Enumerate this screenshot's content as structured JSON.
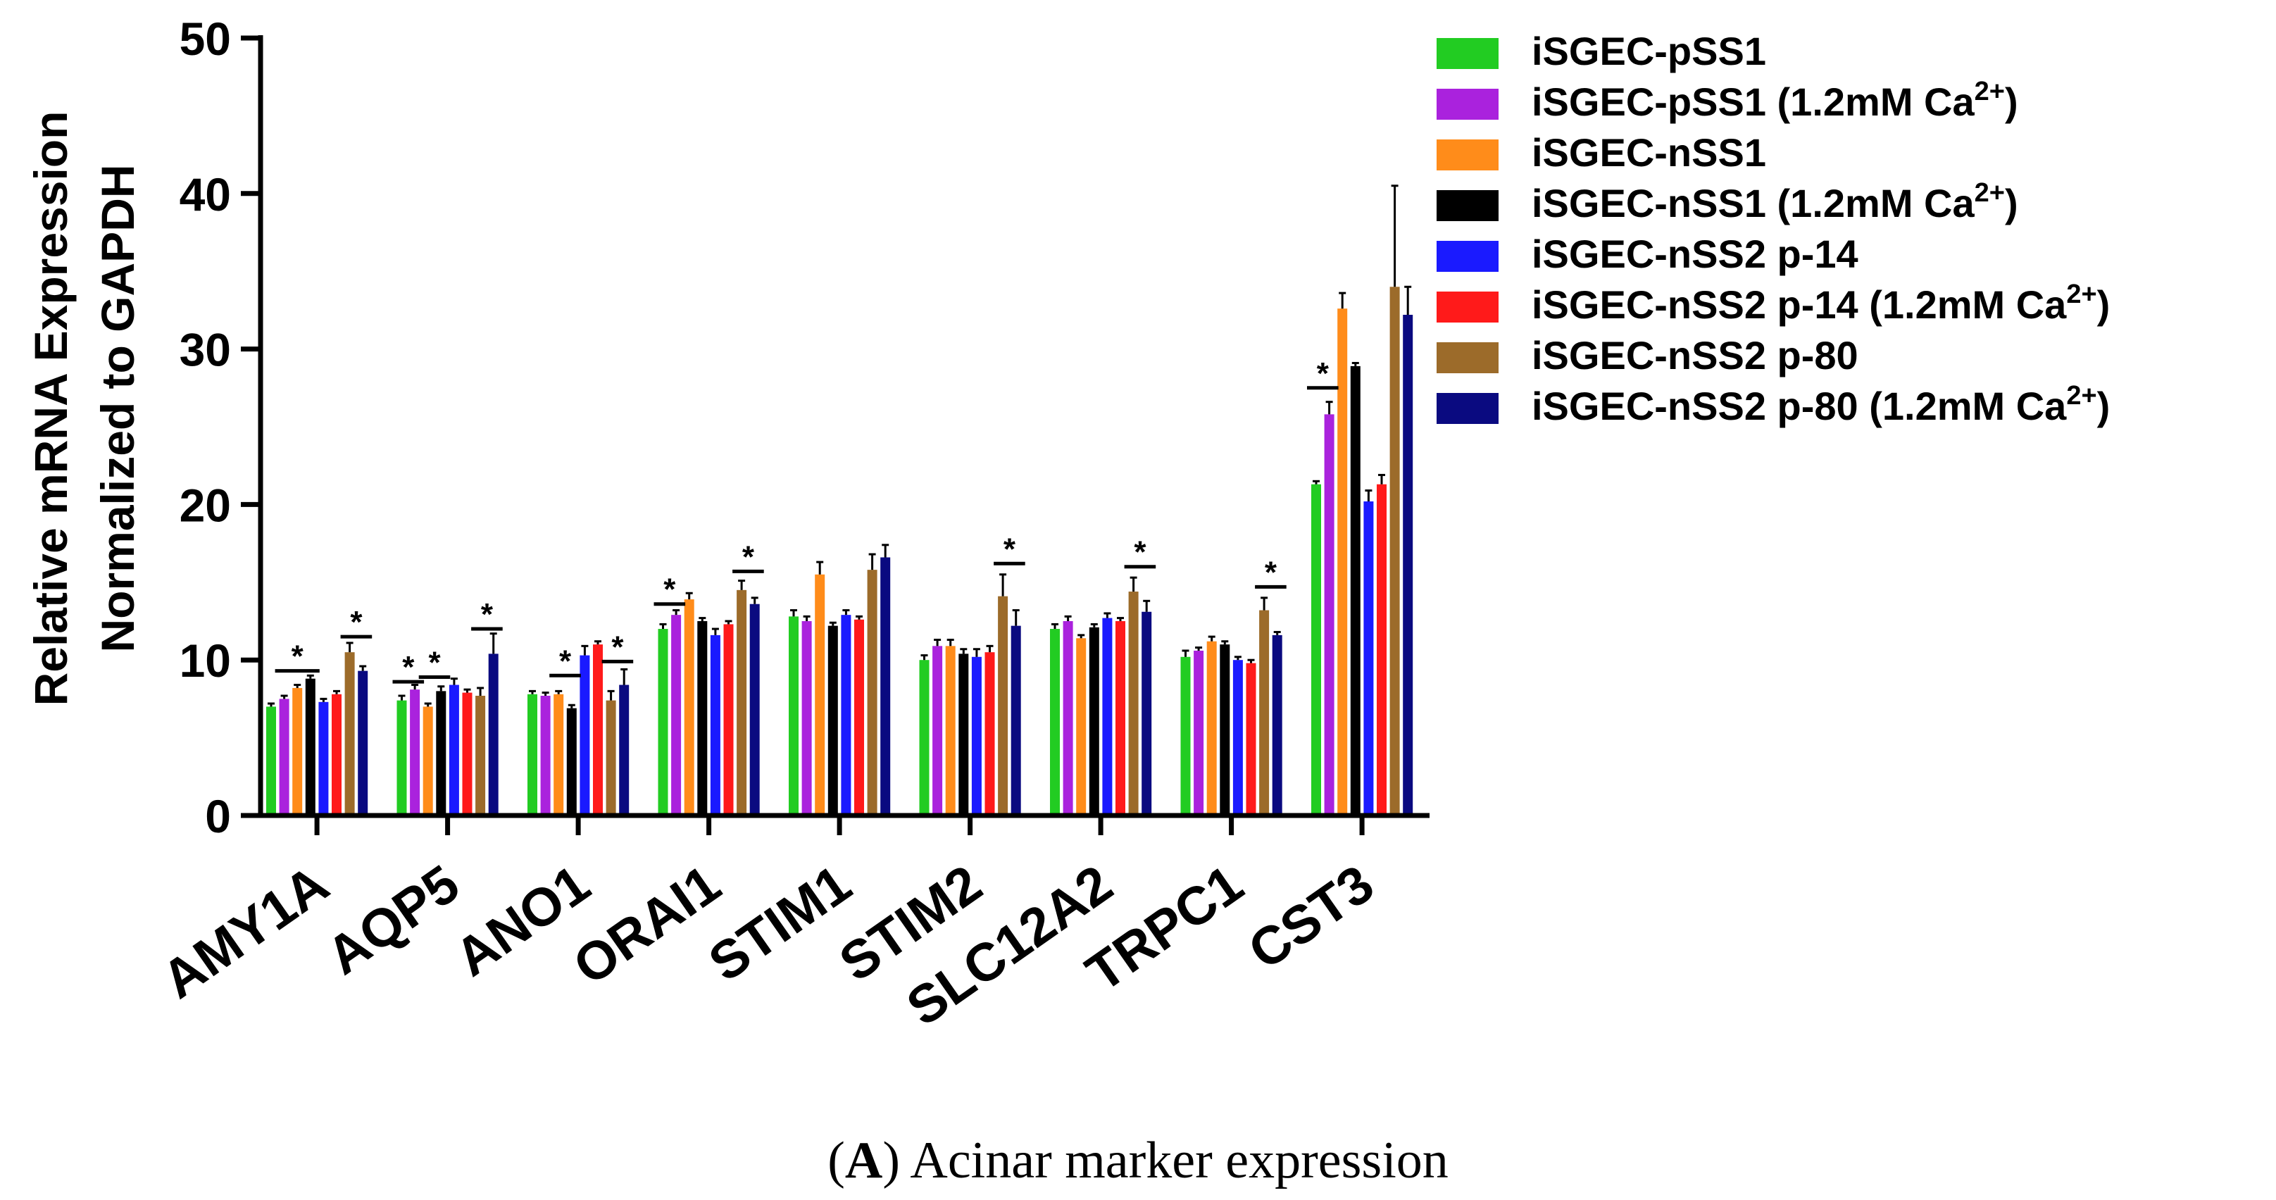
{
  "chart_data": {
    "type": "bar",
    "ylabel_line1": "Relative mRNA Expression",
    "ylabel_line2": "Normalized to GAPDH",
    "xlabel": "",
    "ylim": [
      0,
      50
    ],
    "yticks": [
      0,
      10,
      20,
      30,
      40,
      50
    ],
    "categories": [
      "AMY1A",
      "AQP5",
      "ANO1",
      "ORAI1",
      "STIM1",
      "STIM2",
      "SLC12A2",
      "TRPC1",
      "CST3"
    ],
    "series": [
      {
        "name": "iSGEC-pSS1",
        "suffix": "",
        "sup": "",
        "tail": "",
        "color": "#22cc22",
        "values": [
          7.0,
          7.4,
          7.8,
          12.0,
          12.8,
          10.0,
          12.0,
          10.2,
          21.3
        ],
        "errors": [
          0.2,
          0.3,
          0.2,
          0.3,
          0.4,
          0.3,
          0.3,
          0.4,
          0.2
        ]
      },
      {
        "name": "iSGEC-pSS1",
        "suffix": " (1.2mM Ca",
        "sup": "2+",
        "tail": ")",
        "color": "#aa22dd",
        "values": [
          7.5,
          8.1,
          7.7,
          12.9,
          12.5,
          10.9,
          12.5,
          10.6,
          25.8
        ],
        "errors": [
          0.2,
          0.3,
          0.2,
          0.3,
          0.3,
          0.4,
          0.3,
          0.2,
          0.8
        ]
      },
      {
        "name": "iSGEC-nSS1",
        "suffix": "",
        "sup": "",
        "tail": "",
        "color": "#ff8c1a",
        "values": [
          8.2,
          7.0,
          7.8,
          13.9,
          15.5,
          10.9,
          11.4,
          11.2,
          32.6
        ],
        "errors": [
          0.2,
          0.2,
          0.2,
          0.4,
          0.8,
          0.4,
          0.2,
          0.3,
          1.0
        ]
      },
      {
        "name": "iSGEC-nSS1",
        "suffix": " (1.2mM Ca",
        "sup": "2+",
        "tail": ")",
        "color": "#000000",
        "values": [
          8.8,
          8.0,
          6.9,
          12.5,
          12.2,
          10.4,
          12.1,
          11.0,
          28.9
        ],
        "errors": [
          0.2,
          0.3,
          0.2,
          0.2,
          0.2,
          0.3,
          0.2,
          0.2,
          0.2
        ]
      },
      {
        "name": "iSGEC-nSS2 p-14",
        "suffix": "",
        "sup": "",
        "tail": "",
        "color": "#1a1aff",
        "values": [
          7.3,
          8.4,
          10.3,
          11.6,
          12.9,
          10.2,
          12.7,
          10.0,
          20.2
        ],
        "errors": [
          0.2,
          0.4,
          0.6,
          0.4,
          0.3,
          0.5,
          0.3,
          0.2,
          0.7
        ]
      },
      {
        "name": "iSGEC-nSS2 p-14",
        "suffix": " (1.2mM Ca",
        "sup": "2+",
        "tail": ")",
        "color": "#ff1a1a",
        "values": [
          7.8,
          7.9,
          11.0,
          12.3,
          12.6,
          10.5,
          12.5,
          9.8,
          21.3
        ],
        "errors": [
          0.2,
          0.2,
          0.2,
          0.2,
          0.2,
          0.4,
          0.2,
          0.2,
          0.6
        ]
      },
      {
        "name": "iSGEC-nSS2 p-80",
        "suffix": "",
        "sup": "",
        "tail": "",
        "color": "#9c6b2a",
        "values": [
          10.5,
          7.7,
          7.4,
          14.5,
          15.8,
          14.1,
          14.4,
          13.2,
          34.0
        ],
        "errors": [
          0.6,
          0.5,
          0.6,
          0.6,
          1.0,
          1.4,
          0.9,
          0.8,
          6.5
        ]
      },
      {
        "name": "iSGEC-nSS2 p-80",
        "suffix": " (1.2mM Ca",
        "sup": "2+",
        "tail": ")",
        "color": "#0a0a80",
        "values": [
          9.3,
          10.4,
          8.4,
          13.6,
          16.6,
          12.2,
          13.1,
          11.6,
          32.2
        ],
        "errors": [
          0.3,
          1.3,
          1.0,
          0.4,
          0.8,
          1.0,
          0.7,
          0.2,
          1.8
        ]
      }
    ],
    "significance": [
      {
        "category": 0,
        "from_series": 1,
        "to_series": 3,
        "y": 9.3,
        "label": "*"
      },
      {
        "category": 0,
        "from_series": 6,
        "to_series": 7,
        "y": 11.5,
        "label": "*"
      },
      {
        "category": 1,
        "from_series": 0,
        "to_series": 1,
        "y": 8.6,
        "label": "*"
      },
      {
        "category": 1,
        "from_series": 2,
        "to_series": 3,
        "y": 8.9,
        "label": "*"
      },
      {
        "category": 1,
        "from_series": 6,
        "to_series": 7,
        "y": 12.0,
        "label": "*"
      },
      {
        "category": 2,
        "from_series": 2,
        "to_series": 3,
        "y": 9.0,
        "label": "*"
      },
      {
        "category": 2,
        "from_series": 6,
        "to_series": 7,
        "y": 9.9,
        "label": "*"
      },
      {
        "category": 3,
        "from_series": 0,
        "to_series": 1,
        "y": 13.6,
        "label": "*"
      },
      {
        "category": 3,
        "from_series": 6,
        "to_series": 7,
        "y": 15.7,
        "label": "*"
      },
      {
        "category": 5,
        "from_series": 6,
        "to_series": 7,
        "y": 16.2,
        "label": "*"
      },
      {
        "category": 6,
        "from_series": 6,
        "to_series": 7,
        "y": 16.0,
        "label": "*"
      },
      {
        "category": 7,
        "from_series": 6,
        "to_series": 7,
        "y": 14.7,
        "label": "*"
      },
      {
        "category": 8,
        "from_series": 0,
        "to_series": 1,
        "y": 27.5,
        "label": "*"
      }
    ],
    "legend_position": "right",
    "caption_letter": "A",
    "caption_text": " Acinar marker expression"
  }
}
